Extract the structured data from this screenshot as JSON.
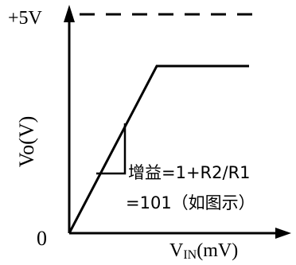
{
  "chart_data": {
    "type": "line",
    "title": "",
    "ylabel": "Vo(V)",
    "xlabel_main": "V",
    "xlabel_sub": "IN",
    "xlabel_unit": "(mV)",
    "origin_label": "0",
    "ref_line_label": "+5V",
    "annotation_line1": "增益=1+R2/R1",
    "annotation_line2": "=101（如图示）",
    "series": [
      {
        "x": [
          0,
          1,
          2
        ],
        "y": [
          0,
          5,
          5
        ]
      }
    ],
    "gain": 101,
    "saturation_v": 5
  }
}
